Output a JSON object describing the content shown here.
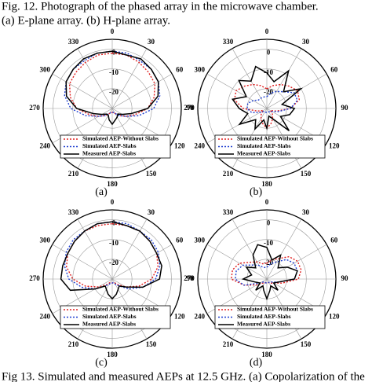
{
  "caption_top": {
    "line1": "Fig. 12.    Photograph of the phased array in the microwave chamber.",
    "line2": "(a) E-plane array. (b) H-plane array."
  },
  "chart_data": [
    {
      "type": "polar",
      "label": "(a)",
      "theta": [
        0,
        15,
        30,
        45,
        60,
        75,
        90,
        105,
        120,
        135,
        150,
        165,
        180,
        195,
        210,
        225,
        240,
        255,
        270,
        285,
        300,
        315,
        330,
        345
      ],
      "rlim": [
        -30,
        5
      ],
      "rticks": [
        -20,
        -10,
        0
      ],
      "angle_ticks": [
        0,
        30,
        60,
        90,
        120,
        150,
        180,
        210,
        240,
        270,
        300,
        330
      ],
      "series": [
        {
          "name": "Simulated AEP-Without Slabs",
          "color": "#e02020",
          "linestyle": "dotted",
          "values": [
            -2,
            -2,
            -3,
            -4,
            -5,
            -8,
            -12,
            -18,
            -22,
            -25,
            -27,
            -28,
            -28,
            -28,
            -27,
            -25,
            -22,
            -18,
            -12,
            -8,
            -5,
            -4,
            -3,
            -2
          ]
        },
        {
          "name": "Simulated AEP-Slabs",
          "color": "#1f3fd0",
          "linestyle": "dotted",
          "values": [
            -1,
            -1,
            -2,
            -2,
            -3,
            -5,
            -9,
            -16,
            -22,
            -25,
            -27,
            -28,
            -28,
            -28,
            -27,
            -25,
            -22,
            -16,
            -9,
            -5,
            -3,
            -2,
            -2,
            -1
          ]
        },
        {
          "name": "Measured AEP-Slabs",
          "color": "#000000",
          "linestyle": "solid",
          "values": [
            -1,
            -2,
            -1,
            -2,
            -3,
            -6,
            -12,
            -20,
            -24,
            -26,
            -25,
            -24,
            -22,
            -24,
            -26,
            -26,
            -24,
            -20,
            -12,
            -6,
            -3,
            -2,
            -1,
            -1
          ]
        }
      ]
    },
    {
      "type": "polar",
      "label": "(b)",
      "theta": [
        0,
        15,
        30,
        45,
        60,
        75,
        90,
        105,
        120,
        135,
        150,
        165,
        180,
        195,
        210,
        225,
        240,
        255,
        270,
        285,
        300,
        315,
        330,
        345
      ],
      "rlim": [
        -30,
        5
      ],
      "rticks": [
        -20,
        -10,
        0
      ],
      "angle_ticks": [
        0,
        30,
        60,
        90,
        120,
        150,
        180,
        210,
        240,
        270,
        300,
        330
      ],
      "series": [
        {
          "name": "Simulated AEP-Without Slabs",
          "color": "#e02020",
          "linestyle": "dotted",
          "values": [
            -20,
            -18,
            -16,
            -14,
            -12,
            -13,
            -18,
            -25,
            -28,
            -26,
            -24,
            -22,
            -20,
            -22,
            -24,
            -26,
            -28,
            -25,
            -18,
            -13,
            -12,
            -14,
            -16,
            -18
          ]
        },
        {
          "name": "Simulated AEP-Slabs",
          "color": "#1f3fd0",
          "linestyle": "dotted",
          "values": [
            -24,
            -22,
            -20,
            -18,
            -14,
            -14,
            -18,
            -24,
            -27,
            -28,
            -28,
            -28,
            -28,
            -28,
            -28,
            -28,
            -26,
            -22,
            -20,
            -20,
            -22,
            -24,
            -24,
            -24
          ]
        },
        {
          "name": "Measured AEP-Slabs",
          "color": "#000000",
          "linestyle": "solid",
          "values": [
            -12,
            -16,
            -8,
            -18,
            -10,
            -22,
            -16,
            -18,
            -22,
            -14,
            -24,
            -26,
            -20,
            -24,
            -18,
            -22,
            -14,
            -20,
            -16,
            -12,
            -18,
            -10,
            -14,
            -8
          ]
        }
      ]
    },
    {
      "type": "polar",
      "label": "(c)",
      "theta": [
        0,
        15,
        30,
        45,
        60,
        75,
        90,
        105,
        120,
        135,
        150,
        165,
        180,
        195,
        210,
        225,
        240,
        255,
        270,
        285,
        300,
        315,
        330,
        345
      ],
      "rlim": [
        -30,
        5
      ],
      "rticks": [
        -20,
        -10,
        0
      ],
      "angle_ticks": [
        0,
        30,
        60,
        90,
        120,
        150,
        180,
        210,
        240,
        270,
        300,
        330
      ],
      "series": [
        {
          "name": "Simulated AEP-Without Slabs",
          "color": "#e02020",
          "linestyle": "dotted",
          "values": [
            -2,
            -2,
            -2,
            -3,
            -4,
            -6,
            -10,
            -16,
            -22,
            -26,
            -28,
            -28,
            -28,
            -28,
            -28,
            -26,
            -22,
            -16,
            -10,
            -6,
            -4,
            -3,
            -2,
            -2
          ]
        },
        {
          "name": "Simulated AEP-Slabs",
          "color": "#1f3fd0",
          "linestyle": "dotted",
          "values": [
            -1,
            -1,
            -2,
            -2,
            -3,
            -5,
            -8,
            -14,
            -20,
            -25,
            -27,
            -28,
            -28,
            -28,
            -27,
            -25,
            -20,
            -14,
            -8,
            -5,
            -3,
            -2,
            -2,
            -1
          ]
        },
        {
          "name": "Measured AEP-Slabs",
          "color": "#000000",
          "linestyle": "solid",
          "values": [
            -1,
            -2,
            -2,
            -3,
            -4,
            -4,
            -6,
            -14,
            -22,
            -25,
            -24,
            -22,
            -20,
            -22,
            -24,
            -25,
            -20,
            -8,
            -4,
            -4,
            -4,
            -3,
            -2,
            -1
          ]
        }
      ]
    },
    {
      "type": "polar",
      "label": "(d)",
      "theta": [
        0,
        15,
        30,
        45,
        60,
        75,
        90,
        105,
        120,
        135,
        150,
        165,
        180,
        195,
        210,
        225,
        240,
        255,
        270,
        285,
        300,
        315,
        330,
        345
      ],
      "rlim": [
        -30,
        5
      ],
      "rticks": [
        -20,
        -10,
        0
      ],
      "angle_ticks": [
        0,
        30,
        60,
        90,
        120,
        150,
        180,
        210,
        240,
        270,
        300,
        330
      ],
      "series": [
        {
          "name": "Simulated AEP-Without Slabs",
          "color": "#e02020",
          "linestyle": "dotted",
          "values": [
            -22,
            -20,
            -18,
            -14,
            -12,
            -12,
            -14,
            -22,
            -26,
            -27,
            -28,
            -28,
            -28,
            -28,
            -28,
            -27,
            -24,
            -18,
            -12,
            -12,
            -14,
            -18,
            -20,
            -22
          ]
        },
        {
          "name": "Simulated AEP-Slabs",
          "color": "#1f3fd0",
          "linestyle": "dotted",
          "values": [
            -24,
            -22,
            -20,
            -16,
            -14,
            -14,
            -16,
            -24,
            -27,
            -28,
            -28,
            -28,
            -28,
            -28,
            -28,
            -28,
            -26,
            -18,
            -14,
            -14,
            -16,
            -20,
            -22,
            -24
          ]
        },
        {
          "name": "Measured AEP-Slabs",
          "color": "#000000",
          "linestyle": "solid",
          "values": [
            -14,
            -20,
            -16,
            -22,
            -18,
            -14,
            -16,
            -24,
            -26,
            -22,
            -26,
            -24,
            -20,
            -24,
            -26,
            -22,
            -26,
            -24,
            -18,
            -22,
            -18,
            -22,
            -16,
            -12
          ]
        }
      ]
    }
  ],
  "caption_bottom": "Fig 13.  Simulated and measured AEPs at 12.5 GHz. (a) Copolarization of the"
}
